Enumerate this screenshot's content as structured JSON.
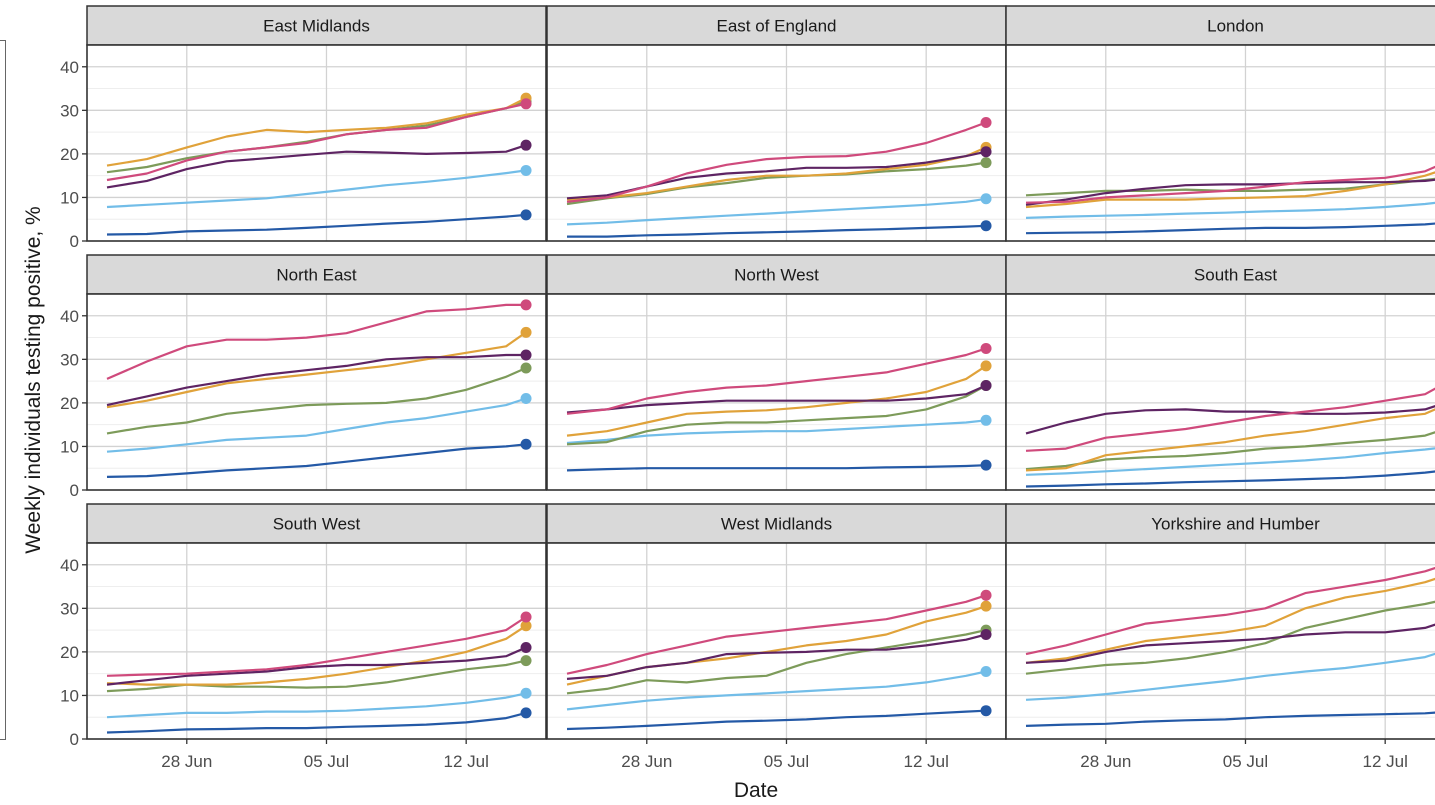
{
  "chart_data": {
    "type": "line",
    "facet_layout": "3x3 grid",
    "ylabel": "Weekly individuals testing positive, %",
    "xlabel": "Date",
    "ylim": [
      0,
      45
    ],
    "yticks": [
      0,
      10,
      20,
      30,
      40
    ],
    "x_domain": [
      "2021-06-23",
      "2021-07-16"
    ],
    "xticks": [
      {
        "date": "2021-06-28",
        "label": "28 Jun"
      },
      {
        "date": "2021-07-05",
        "label": "05 Jul"
      },
      {
        "date": "2021-07-12",
        "label": "12 Jul"
      }
    ],
    "grid": true,
    "legend": "cut off at left edge",
    "dates": [
      "2021-06-24",
      "2021-06-26",
      "2021-06-28",
      "2021-06-30",
      "2021-07-02",
      "2021-07-04",
      "2021-07-06",
      "2021-07-08",
      "2021-07-10",
      "2021-07-12",
      "2021-07-14",
      "2021-07-15"
    ],
    "series_colors": [
      "#2459a6",
      "#72bde8",
      "#7d9b5a",
      "#e0a23a",
      "#5e2463",
      "#cf4a7c"
    ],
    "panels": [
      {
        "title": "East Midlands",
        "series": [
          {
            "values": [
              1.5,
              1.6,
              2.2,
              2.4,
              2.6,
              3.0,
              3.5,
              4.0,
              4.4,
              5.0,
              5.6,
              6.0
            ]
          },
          {
            "values": [
              7.8,
              8.3,
              8.8,
              9.3,
              9.8,
              10.8,
              11.8,
              12.8,
              13.6,
              14.5,
              15.6,
              16.2
            ]
          },
          {
            "values": [
              15.8,
              17.0,
              19.0,
              20.5,
              21.5,
              22.8,
              24.5,
              25.5,
              26.5,
              28.5,
              30.5,
              32.0
            ]
          },
          {
            "values": [
              17.3,
              18.8,
              21.5,
              24.0,
              25.5,
              25.0,
              25.5,
              26.0,
              27.0,
              29.0,
              30.5,
              32.8
            ]
          },
          {
            "values": [
              12.3,
              13.8,
              16.5,
              18.3,
              19.0,
              19.8,
              20.5,
              20.3,
              20.0,
              20.2,
              20.5,
              22.0
            ]
          },
          {
            "values": [
              14.0,
              15.5,
              18.5,
              20.5,
              21.5,
              22.5,
              24.5,
              25.5,
              26.0,
              28.5,
              30.5,
              31.5
            ]
          }
        ]
      },
      {
        "title": "East of England",
        "series": [
          {
            "values": [
              1.0,
              1.0,
              1.3,
              1.5,
              1.8,
              2.0,
              2.2,
              2.5,
              2.7,
              3.0,
              3.3,
              3.5
            ]
          },
          {
            "values": [
              3.8,
              4.2,
              4.8,
              5.3,
              5.8,
              6.3,
              6.8,
              7.3,
              7.8,
              8.3,
              9.0,
              9.7
            ]
          },
          {
            "values": [
              8.5,
              9.8,
              10.8,
              12.3,
              13.3,
              14.5,
              15.0,
              15.3,
              16.0,
              16.5,
              17.3,
              18.0
            ]
          },
          {
            "values": [
              9.5,
              10.0,
              11.0,
              12.5,
              14.0,
              15.0,
              15.0,
              15.5,
              16.5,
              17.5,
              19.5,
              21.5
            ]
          },
          {
            "values": [
              9.8,
              10.5,
              12.5,
              14.5,
              15.5,
              16.0,
              16.8,
              16.8,
              17.0,
              18.0,
              19.5,
              20.5
            ]
          },
          {
            "values": [
              9.0,
              10.0,
              12.5,
              15.5,
              17.5,
              18.8,
              19.3,
              19.5,
              20.5,
              22.5,
              25.5,
              27.2
            ]
          }
        ]
      },
      {
        "title": "London",
        "series": [
          {
            "values": [
              1.8,
              1.9,
              2.0,
              2.2,
              2.5,
              2.8,
              3.0,
              3.0,
              3.2,
              3.5,
              3.8,
              4.2
            ]
          },
          {
            "values": [
              5.3,
              5.6,
              5.8,
              6.0,
              6.3,
              6.5,
              6.8,
              7.0,
              7.3,
              7.8,
              8.5,
              9.0
            ]
          },
          {
            "values": [
              10.5,
              11.0,
              11.5,
              11.5,
              11.8,
              11.5,
              11.5,
              11.8,
              12.0,
              13.0,
              14.0,
              14.5
            ]
          },
          {
            "values": [
              7.8,
              8.5,
              9.5,
              9.5,
              9.5,
              9.8,
              10.0,
              10.3,
              11.5,
              13.0,
              15.0,
              16.5
            ]
          },
          {
            "values": [
              8.3,
              9.5,
              11.0,
              12.0,
              12.8,
              13.0,
              13.0,
              13.3,
              13.5,
              13.5,
              13.8,
              14.3
            ]
          },
          {
            "values": [
              8.8,
              9.0,
              10.0,
              10.5,
              11.0,
              11.5,
              12.5,
              13.5,
              14.0,
              14.5,
              16.0,
              18.0
            ]
          }
        ]
      },
      {
        "title": "North East",
        "series": [
          {
            "values": [
              3.0,
              3.2,
              3.8,
              4.5,
              5.0,
              5.5,
              6.5,
              7.5,
              8.5,
              9.5,
              10.0,
              10.5
            ]
          },
          {
            "values": [
              8.8,
              9.5,
              10.5,
              11.5,
              12.0,
              12.5,
              14.0,
              15.5,
              16.5,
              18.0,
              19.5,
              21.0
            ]
          },
          {
            "values": [
              13.0,
              14.5,
              15.5,
              17.5,
              18.5,
              19.5,
              19.8,
              20.0,
              21.0,
              23.0,
              26.0,
              28.0
            ]
          },
          {
            "values": [
              19.0,
              20.5,
              22.5,
              24.5,
              25.5,
              26.5,
              27.5,
              28.5,
              30.0,
              31.5,
              33.0,
              36.2
            ]
          },
          {
            "values": [
              19.5,
              21.5,
              23.5,
              25.0,
              26.5,
              27.5,
              28.5,
              30.0,
              30.5,
              30.5,
              31.0,
              31.0
            ]
          },
          {
            "values": [
              25.5,
              29.5,
              33.0,
              34.5,
              34.5,
              35.0,
              36.0,
              38.5,
              41.0,
              41.5,
              42.5,
              42.5
            ]
          }
        ]
      },
      {
        "title": "North West",
        "series": [
          {
            "values": [
              4.5,
              4.8,
              5.0,
              5.0,
              5.0,
              5.0,
              5.0,
              5.0,
              5.2,
              5.3,
              5.5,
              5.7
            ]
          },
          {
            "values": [
              10.8,
              11.5,
              12.5,
              13.0,
              13.3,
              13.5,
              13.5,
              14.0,
              14.5,
              15.0,
              15.5,
              16.0
            ]
          },
          {
            "values": [
              10.5,
              11.0,
              13.5,
              15.0,
              15.5,
              15.5,
              16.0,
              16.5,
              17.0,
              18.5,
              21.5,
              24.0
            ]
          },
          {
            "values": [
              12.5,
              13.5,
              15.5,
              17.5,
              18.0,
              18.3,
              19.0,
              20.0,
              21.0,
              22.5,
              25.5,
              28.5
            ]
          },
          {
            "values": [
              17.8,
              18.5,
              19.5,
              20.0,
              20.5,
              20.5,
              20.5,
              20.5,
              20.5,
              21.0,
              22.0,
              24.0
            ]
          },
          {
            "values": [
              17.5,
              18.5,
              21.0,
              22.5,
              23.5,
              24.0,
              25.0,
              26.0,
              27.0,
              29.0,
              31.0,
              32.5
            ]
          }
        ]
      },
      {
        "title": "South East",
        "series": [
          {
            "values": [
              0.8,
              1.0,
              1.3,
              1.5,
              1.8,
              2.0,
              2.2,
              2.5,
              2.8,
              3.3,
              4.0,
              4.5
            ]
          },
          {
            "values": [
              3.5,
              3.8,
              4.3,
              4.8,
              5.3,
              5.8,
              6.3,
              6.8,
              7.5,
              8.5,
              9.3,
              9.8
            ]
          },
          {
            "values": [
              4.8,
              5.5,
              7.0,
              7.5,
              7.8,
              8.5,
              9.5,
              10.0,
              10.8,
              11.5,
              12.5,
              14.0
            ]
          },
          {
            "values": [
              4.5,
              5.0,
              8.0,
              9.0,
              10.0,
              11.0,
              12.5,
              13.5,
              15.0,
              16.5,
              17.5,
              19.5
            ]
          },
          {
            "values": [
              13.0,
              15.5,
              17.5,
              18.3,
              18.5,
              18.0,
              18.0,
              17.5,
              17.5,
              17.8,
              18.5,
              20.0
            ]
          },
          {
            "values": [
              9.0,
              9.5,
              12.0,
              13.0,
              14.0,
              15.5,
              17.0,
              18.0,
              19.0,
              20.5,
              22.0,
              24.5
            ]
          }
        ]
      },
      {
        "title": "South West",
        "series": [
          {
            "values": [
              1.5,
              1.8,
              2.2,
              2.3,
              2.5,
              2.5,
              2.8,
              3.0,
              3.3,
              3.8,
              4.8,
              6.0
            ]
          },
          {
            "values": [
              5.0,
              5.5,
              6.0,
              6.0,
              6.3,
              6.3,
              6.5,
              7.0,
              7.5,
              8.3,
              9.5,
              10.5
            ]
          },
          {
            "values": [
              11.0,
              11.5,
              12.5,
              12.0,
              12.0,
              11.8,
              12.0,
              13.0,
              14.5,
              16.0,
              17.0,
              18.0
            ]
          },
          {
            "values": [
              12.8,
              12.5,
              12.5,
              12.5,
              13.0,
              13.8,
              15.0,
              16.5,
              18.0,
              20.0,
              23.0,
              26.0
            ]
          },
          {
            "values": [
              12.5,
              13.5,
              14.5,
              15.0,
              15.5,
              16.5,
              17.0,
              17.0,
              17.5,
              18.0,
              19.0,
              21.0
            ]
          },
          {
            "values": [
              14.5,
              14.8,
              15.0,
              15.5,
              16.0,
              17.0,
              18.5,
              20.0,
              21.5,
              23.0,
              25.0,
              28.0
            ]
          }
        ]
      },
      {
        "title": "West Midlands",
        "series": [
          {
            "values": [
              2.3,
              2.6,
              3.0,
              3.5,
              4.0,
              4.2,
              4.5,
              5.0,
              5.3,
              5.8,
              6.3,
              6.5
            ]
          },
          {
            "values": [
              6.8,
              7.8,
              8.8,
              9.5,
              10.0,
              10.5,
              11.0,
              11.5,
              12.0,
              13.0,
              14.5,
              15.5
            ]
          },
          {
            "values": [
              10.5,
              11.5,
              13.5,
              13.0,
              14.0,
              14.5,
              17.5,
              19.5,
              21.0,
              22.5,
              24.0,
              25.0
            ]
          },
          {
            "values": [
              12.5,
              14.5,
              16.5,
              17.5,
              18.5,
              20.0,
              21.5,
              22.5,
              24.0,
              27.0,
              29.0,
              30.5
            ]
          },
          {
            "values": [
              13.8,
              14.5,
              16.5,
              17.5,
              19.5,
              19.8,
              20.0,
              20.5,
              20.5,
              21.5,
              22.8,
              24.0
            ]
          },
          {
            "values": [
              15.0,
              17.0,
              19.5,
              21.5,
              23.5,
              24.5,
              25.5,
              26.5,
              27.5,
              29.5,
              31.5,
              33.0
            ]
          }
        ]
      },
      {
        "title": "Yorkshire and Humber",
        "series": [
          {
            "values": [
              3.0,
              3.3,
              3.5,
              4.0,
              4.3,
              4.5,
              5.0,
              5.3,
              5.5,
              5.7,
              5.9,
              6.2
            ]
          },
          {
            "values": [
              9.0,
              9.5,
              10.3,
              11.3,
              12.3,
              13.3,
              14.5,
              15.5,
              16.3,
              17.5,
              18.8,
              20.3
            ]
          },
          {
            "values": [
              15.0,
              16.0,
              17.0,
              17.5,
              18.5,
              20.0,
              22.0,
              25.5,
              27.5,
              29.5,
              31.0,
              32.0
            ]
          },
          {
            "values": [
              17.5,
              18.5,
              20.5,
              22.5,
              23.5,
              24.5,
              26.0,
              30.0,
              32.5,
              34.0,
              36.0,
              37.5
            ]
          },
          {
            "values": [
              17.5,
              18.0,
              20.0,
              21.5,
              22.0,
              22.5,
              23.0,
              24.0,
              24.5,
              24.5,
              25.5,
              27.0
            ]
          },
          {
            "values": [
              19.5,
              21.5,
              24.0,
              26.5,
              27.5,
              28.5,
              30.0,
              33.5,
              35.0,
              36.5,
              38.5,
              40.0
            ]
          }
        ]
      }
    ]
  }
}
